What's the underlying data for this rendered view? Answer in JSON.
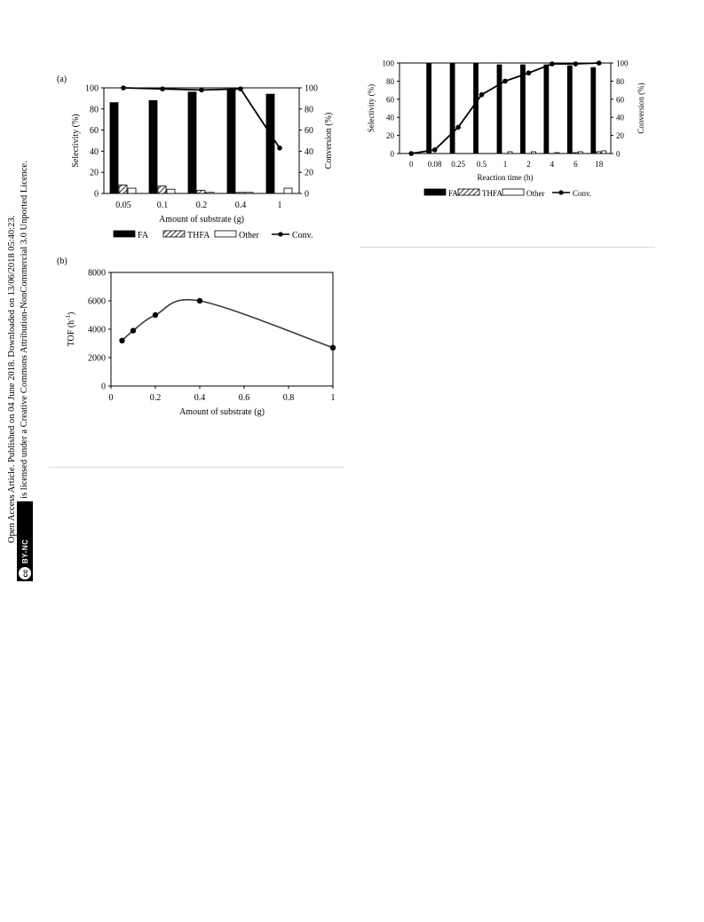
{
  "sidebar": {
    "line1": "Open Access Article. Published on 04 June 2018. Downloaded on 13/06/2018 05:40:23.",
    "line2": "This article is licensed under a Creative Commons Attribution-NonCommercial 3.0 Unported Licence.",
    "badge_cc": "cc",
    "badge_text": "BY-NC"
  },
  "chart_data": [
    {
      "id": "a",
      "panel_label": "(a)",
      "type": "bar",
      "categories": [
        "0.05",
        "0.1",
        "0.2",
        "0.4",
        "1"
      ],
      "xlabel": "Amount of substrate (g)",
      "ylabel": "Selectivity (%)",
      "y2label": "Conversion (%)",
      "ylim": [
        0,
        100
      ],
      "y2lim": [
        0,
        100
      ],
      "yticks": [
        0,
        20,
        40,
        60,
        80,
        100
      ],
      "series": [
        {
          "name": "FA",
          "values": [
            86,
            88,
            96,
            98,
            94
          ],
          "style": "solid"
        },
        {
          "name": "THFA",
          "values": [
            8,
            7,
            3,
            1,
            0
          ],
          "style": "hatch"
        },
        {
          "name": "Other",
          "values": [
            5,
            4,
            1,
            1,
            5
          ],
          "style": "open"
        },
        {
          "name": "Conv.",
          "values": [
            100,
            99,
            98,
            99,
            43
          ],
          "style": "line",
          "axis": "y2"
        }
      ],
      "legend": [
        "FA",
        "THFA",
        "Other",
        "Conv."
      ],
      "legend_position": "bottom"
    },
    {
      "id": "b",
      "panel_label": "(b)",
      "type": "line",
      "x": [
        0.05,
        0.1,
        0.2,
        0.4,
        1
      ],
      "y": [
        3200,
        3900,
        5000,
        6000,
        2700
      ],
      "xlabel": "Amount of substrate (g)",
      "ylabel": "TOF (h",
      "ylabel_sup": "-1",
      "ylabel_end": ")",
      "xlim": [
        0,
        1
      ],
      "ylim": [
        0,
        8000
      ],
      "xticks": [
        0,
        0.2,
        0.4,
        0.6,
        0.8,
        1
      ],
      "yticks": [
        0,
        2000,
        4000,
        6000,
        8000
      ]
    },
    {
      "id": "c",
      "type": "bar",
      "categories": [
        "0",
        "0.08",
        "0.25",
        "0.5",
        "1",
        "2",
        "4",
        "6",
        "18"
      ],
      "xlabel": "Reaction time (h)",
      "ylabel": "Selectivity (%)",
      "y2label": "Conversion (%)",
      "ylim": [
        0,
        100
      ],
      "y2lim": [
        0,
        100
      ],
      "yticks": [
        0,
        20,
        40,
        60,
        80,
        100
      ],
      "series": [
        {
          "name": "FA",
          "values": [
            0,
            100,
            100,
            100,
            98,
            98,
            98,
            97,
            95
          ],
          "style": "solid"
        },
        {
          "name": "THFA",
          "values": [
            0,
            0,
            0,
            0,
            0,
            0,
            0,
            1,
            2
          ],
          "style": "hatch"
        },
        {
          "name": "Other",
          "values": [
            0,
            0,
            0,
            0,
            2,
            2,
            1,
            2,
            3
          ],
          "style": "open"
        },
        {
          "name": "Conv.",
          "values": [
            0,
            4,
            29,
            65,
            80,
            89,
            99,
            99,
            100
          ],
          "style": "line",
          "axis": "y2"
        }
      ],
      "legend": [
        "FA",
        "THFA",
        "Other",
        "Conv."
      ],
      "legend_position": "bottom"
    }
  ]
}
